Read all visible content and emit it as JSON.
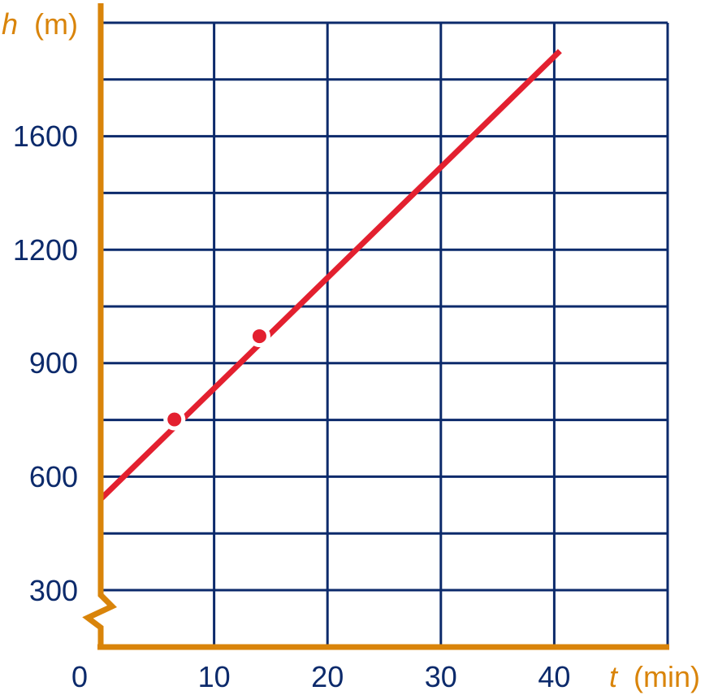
{
  "chart_data": {
    "type": "line",
    "xlabel_var": "t",
    "xlabel_unit": "(min)",
    "ylabel_var": "h",
    "ylabel_unit": "(m)",
    "x_ticks": [
      0,
      10,
      20,
      30,
      40
    ],
    "y_ticks": [
      300,
      600,
      900,
      1200,
      1600
    ],
    "xlim": [
      0,
      50
    ],
    "grid_rows": 11,
    "grid": true,
    "axis_break": true,
    "series": [
      {
        "x": [
          0,
          40.5
        ],
        "y": [
          540,
          1900
        ]
      }
    ],
    "points": [
      {
        "x": 6.5,
        "y": 750
      },
      {
        "x": 14,
        "y": 970
      }
    ],
    "colors": {
      "grid": "#0c2a6b",
      "axis": "#d9840a",
      "line": "#e3202f",
      "tick_text": "#0c2a6b",
      "label_text": "#d9840a"
    }
  }
}
